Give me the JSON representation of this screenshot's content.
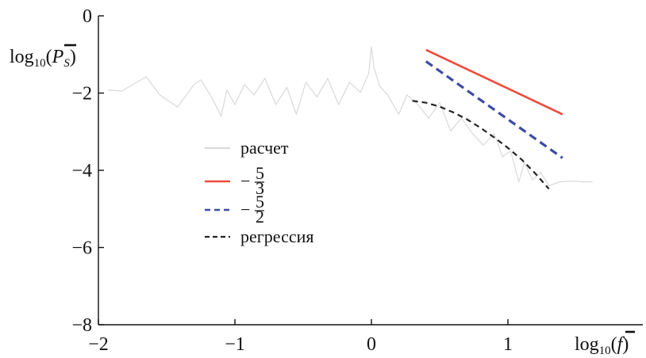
{
  "chart_data": {
    "type": "line",
    "xlabel": "log10(f̄)",
    "ylabel": "log10(P̄_S)",
    "x_ticks": [
      -2,
      -1,
      0,
      1
    ],
    "y_ticks": [
      0,
      -2,
      -4,
      -6,
      -8
    ],
    "x_tick_labels": [
      "−2",
      "−1",
      "0",
      "1"
    ],
    "y_tick_labels": [
      "0",
      "−2",
      "−4",
      "−6",
      "−8"
    ],
    "xlim": [
      -2,
      1.94
    ],
    "ylim": [
      -8,
      0
    ],
    "grid": false,
    "legend_position": "center-left",
    "legend": [
      {
        "label": "расчет",
        "fraction": null,
        "color": "#d9d9d9",
        "dash": "solid"
      },
      {
        "label": "−",
        "fraction": {
          "num": "5",
          "den": "3"
        },
        "color": "#ee4b3c",
        "dash": "solid"
      },
      {
        "label": "−",
        "fraction": {
          "num": "5",
          "den": "2"
        },
        "color": "#3d4ba3",
        "dash": "dashed"
      },
      {
        "label": "регрессия",
        "fraction": null,
        "color": "#222222",
        "dash": "dashed"
      }
    ],
    "series": [
      {
        "name": "расчет",
        "color": "#d9d9d9",
        "points": [
          [
            -1.93,
            -1.92
          ],
          [
            -1.83,
            -1.95
          ],
          [
            -1.65,
            -1.58
          ],
          [
            -1.55,
            -2.05
          ],
          [
            -1.42,
            -2.36
          ],
          [
            -1.3,
            -1.78
          ],
          [
            -1.25,
            -1.66
          ],
          [
            -1.18,
            -2.05
          ],
          [
            -1.1,
            -2.6
          ],
          [
            -1.06,
            -1.92
          ],
          [
            -1.0,
            -2.3
          ],
          [
            -0.93,
            -1.78
          ],
          [
            -0.86,
            -2.05
          ],
          [
            -0.78,
            -1.62
          ],
          [
            -0.7,
            -2.3
          ],
          [
            -0.62,
            -1.85
          ],
          [
            -0.55,
            -2.55
          ],
          [
            -0.48,
            -1.72
          ],
          [
            -0.4,
            -2.1
          ],
          [
            -0.32,
            -1.62
          ],
          [
            -0.24,
            -2.3
          ],
          [
            -0.16,
            -1.72
          ],
          [
            -0.08,
            -1.98
          ],
          [
            -0.02,
            -1.5
          ],
          [
            0.0,
            -0.8
          ],
          [
            0.02,
            -1.35
          ],
          [
            0.06,
            -1.82
          ],
          [
            0.12,
            -2.05
          ],
          [
            0.2,
            -2.55
          ],
          [
            0.26,
            -2.05
          ],
          [
            0.34,
            -2.3
          ],
          [
            0.42,
            -2.65
          ],
          [
            0.5,
            -2.25
          ],
          [
            0.58,
            -2.98
          ],
          [
            0.66,
            -2.65
          ],
          [
            0.74,
            -3.05
          ],
          [
            0.82,
            -3.35
          ],
          [
            0.9,
            -3.05
          ],
          [
            0.96,
            -3.65
          ],
          [
            1.02,
            -3.5
          ],
          [
            1.08,
            -4.3
          ],
          [
            1.12,
            -3.8
          ],
          [
            1.18,
            -4.25
          ],
          [
            1.24,
            -4.05
          ],
          [
            1.3,
            -4.4
          ],
          [
            1.38,
            -4.3
          ],
          [
            1.46,
            -4.28
          ],
          [
            1.55,
            -4.3
          ],
          [
            1.62,
            -4.3
          ]
        ]
      },
      {
        "name": "−5/3",
        "color": "#ee4b3c",
        "points": [
          [
            0.4,
            -0.88
          ],
          [
            1.4,
            -2.55
          ]
        ]
      },
      {
        "name": "−5/2",
        "color": "#3d4ba3",
        "points": [
          [
            0.4,
            -1.18
          ],
          [
            1.4,
            -3.68
          ]
        ]
      },
      {
        "name": "регрессия",
        "color": "#222222",
        "points": [
          [
            0.3,
            -2.2
          ],
          [
            0.4,
            -2.25
          ],
          [
            0.5,
            -2.35
          ],
          [
            0.6,
            -2.5
          ],
          [
            0.7,
            -2.68
          ],
          [
            0.8,
            -2.9
          ],
          [
            0.9,
            -3.15
          ],
          [
            1.0,
            -3.42
          ],
          [
            1.1,
            -3.72
          ],
          [
            1.2,
            -4.08
          ],
          [
            1.3,
            -4.48
          ]
        ]
      }
    ]
  }
}
